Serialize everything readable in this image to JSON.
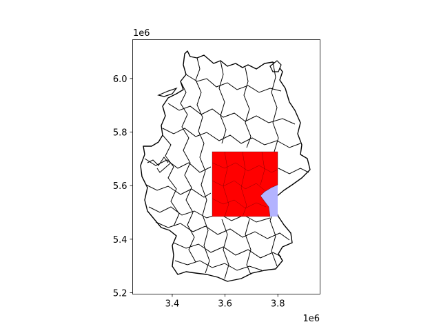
{
  "chart_data": {
    "type": "map",
    "x_axis": {
      "ticks": [
        3.4,
        3.6,
        3.8
      ],
      "tick_labels": [
        "3.4",
        "3.6",
        "3.8"
      ],
      "offset_label": "1e6",
      "range": [
        3.25,
        3.96
      ]
    },
    "y_axis": {
      "ticks": [
        5.2,
        5.4,
        5.6,
        5.8,
        6.0
      ],
      "tick_labels": [
        "5.2",
        "5.4",
        "5.6",
        "5.8",
        "6.0"
      ],
      "offset_label": "1e6",
      "range": [
        5.195,
        6.145
      ]
    },
    "grid": false,
    "colors": {
      "outline": "#000000",
      "region_fill": "#ffffff",
      "bbox_fill": "#b3b3ff",
      "clipped_fill": "#ff0000"
    },
    "highlight_bbox": {
      "x": [
        3.545,
        3.79
      ],
      "y": [
        5.49,
        5.725
      ]
    }
  }
}
